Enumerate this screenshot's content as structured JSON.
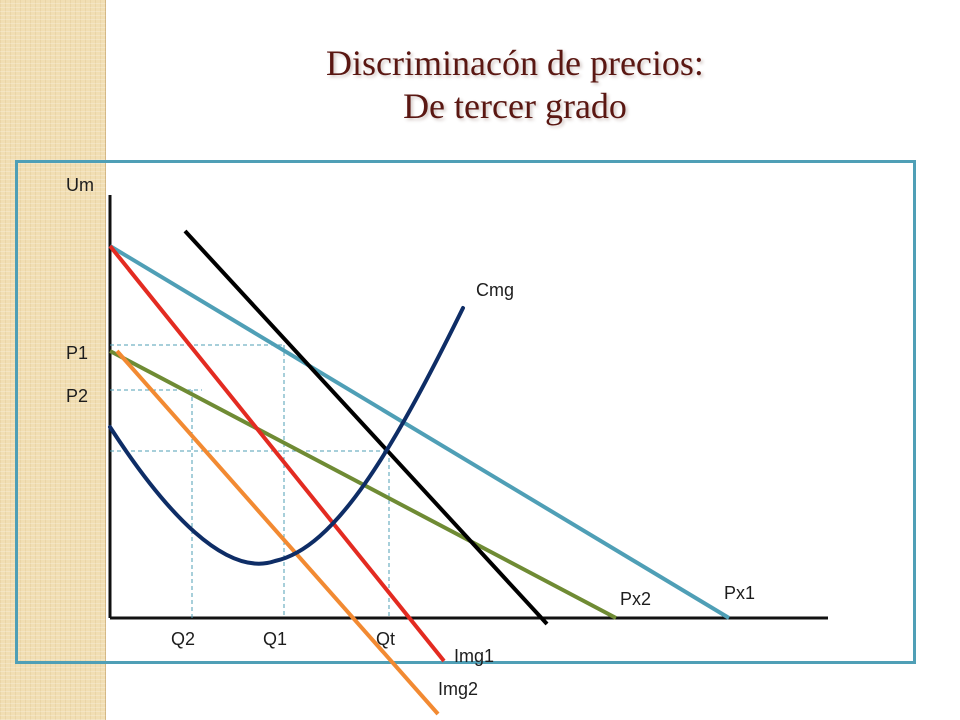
{
  "title": {
    "line1": "Discriminacón de precios:",
    "line2": "De tercer grado"
  },
  "labels": {
    "y_axis": "Um",
    "p1": "P1",
    "p2": "P2",
    "q2": "Q2",
    "q1": "Q1",
    "qt": "Qt",
    "cmg": "Cmg",
    "px2": "Px2",
    "px1": "Px1",
    "img1": "Img1",
    "img2": "Img2"
  },
  "colors": {
    "title": "#5a1712",
    "frame": "#4f9fb6",
    "px1": "#4f9fb6",
    "px2": "#6f8b34",
    "img1": "#e32b21",
    "img2": "#f28a32",
    "cmg": "#0e2d66",
    "img_total": "#000000"
  }
}
